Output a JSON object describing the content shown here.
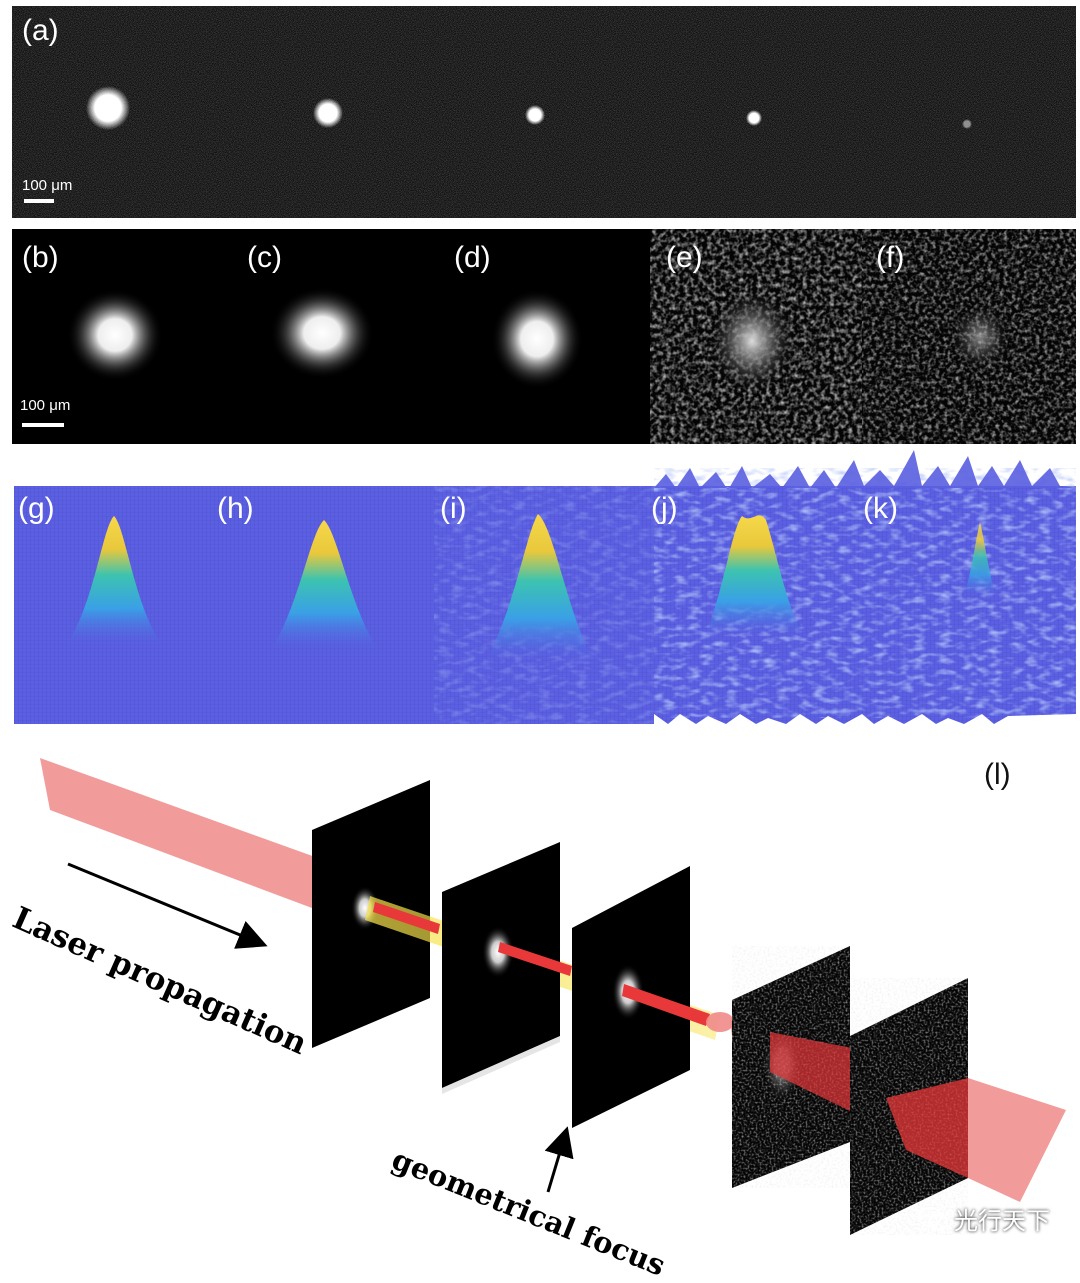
{
  "panels": {
    "a": {
      "label": "(a)",
      "scale": "100 μm"
    },
    "b": {
      "label": "(b)",
      "scale": "100 μm"
    },
    "c": {
      "label": "(c)"
    },
    "d": {
      "label": "(d)"
    },
    "e": {
      "label": "(e)"
    },
    "f": {
      "label": "(f)"
    },
    "g": {
      "label": "(g)"
    },
    "h": {
      "label": "(h)"
    },
    "i": {
      "label": "(i)"
    },
    "j": {
      "label": "(j)"
    },
    "k": {
      "label": "(k)"
    },
    "l": {
      "label": "(l)"
    }
  },
  "schematic": {
    "propagation_text": "Laser propagation",
    "focus_text": "geometrical focus"
  },
  "watermark": {
    "text": "光行天下",
    "icon": "wechat-icon"
  },
  "colors": {
    "beam_red": "#e8383a",
    "beam_pink": "#f08a8a",
    "glow_yellow": "#f6e24a",
    "surface_base": "#5a5ee0"
  }
}
